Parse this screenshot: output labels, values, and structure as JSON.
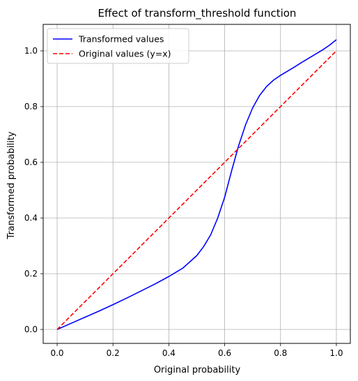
{
  "chart_data": {
    "type": "line",
    "title": "Effect of transform_threshold function",
    "xlabel": "Original probability",
    "ylabel": "Transformed probability",
    "xlim": [
      -0.05,
      1.05
    ],
    "ylim": [
      -0.05,
      1.095
    ],
    "xticks": [
      0.0,
      0.2,
      0.4,
      0.6,
      0.8,
      1.0
    ],
    "yticks": [
      0.0,
      0.2,
      0.4,
      0.6,
      0.8,
      1.0
    ],
    "xtick_labels": [
      "0.0",
      "0.2",
      "0.4",
      "0.6",
      "0.8",
      "1.0"
    ],
    "ytick_labels": [
      "0.0",
      "0.2",
      "0.4",
      "0.6",
      "0.8",
      "1.0"
    ],
    "grid": true,
    "legend_position": "top-left",
    "series": [
      {
        "name": "Transformed values",
        "color": "#0000ff",
        "style": "solid",
        "x": [
          0.0,
          0.05,
          0.1,
          0.15,
          0.2,
          0.25,
          0.3,
          0.35,
          0.4,
          0.45,
          0.5,
          0.525,
          0.55,
          0.575,
          0.6,
          0.625,
          0.65,
          0.675,
          0.7,
          0.725,
          0.75,
          0.775,
          0.8,
          0.825,
          0.85,
          0.875,
          0.9,
          0.925,
          0.95,
          0.975,
          1.0
        ],
        "y": [
          0.0,
          0.022,
          0.044,
          0.066,
          0.089,
          0.113,
          0.138,
          0.163,
          0.19,
          0.22,
          0.265,
          0.298,
          0.34,
          0.4,
          0.475,
          0.57,
          0.66,
          0.735,
          0.795,
          0.84,
          0.872,
          0.895,
          0.912,
          0.927,
          0.942,
          0.958,
          0.973,
          0.988,
          1.003,
          1.02,
          1.04
        ]
      },
      {
        "name": "Original values (y=x)",
        "color": "#ff0000",
        "style": "dashed",
        "x": [
          0.0,
          1.0
        ],
        "y": [
          0.0,
          1.0
        ]
      }
    ]
  }
}
